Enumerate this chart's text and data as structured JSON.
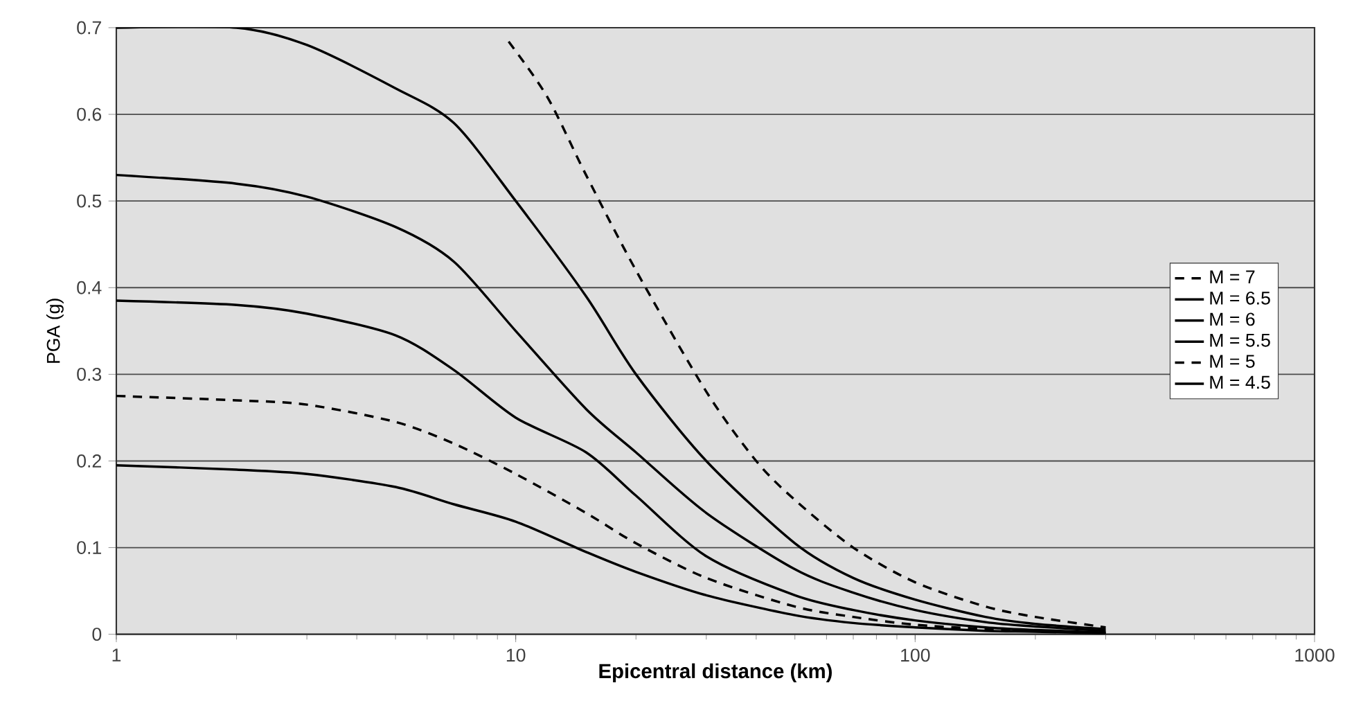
{
  "chart_data": {
    "type": "line",
    "xlabel": "Epicentral distance (km)",
    "ylabel": "PGA (g)",
    "log": "x",
    "xlim": [
      1,
      1000
    ],
    "xticks": [
      1,
      10,
      100,
      1000
    ],
    "ylim": [
      0,
      0.7
    ],
    "yticks": [
      0,
      0.1,
      0.2,
      0.3,
      0.4,
      0.5,
      0.6,
      0.7
    ],
    "grid": "y",
    "legend": "right",
    "marker": "none",
    "series": [
      {
        "name": "M = 7",
        "color": "#000000",
        "line_style": "dashed",
        "x": [
          9.6,
          12,
          15,
          20,
          30,
          40,
          50,
          70,
          100,
          150,
          200,
          300
        ],
        "values": [
          0.684,
          0.62,
          0.53,
          0.42,
          0.28,
          0.2,
          0.155,
          0.1,
          0.06,
          0.032,
          0.02,
          0.008
        ]
      },
      {
        "name": "M = 6.5",
        "color": "#000000",
        "line_style": "solid",
        "x": [
          1,
          2,
          3,
          5,
          7,
          10,
          15,
          20,
          30,
          50,
          70,
          100,
          150,
          200,
          300
        ],
        "values": [
          0.7,
          0.7,
          0.68,
          0.63,
          0.59,
          0.5,
          0.39,
          0.3,
          0.2,
          0.105,
          0.065,
          0.04,
          0.02,
          0.012,
          0.006
        ]
      },
      {
        "name": "M = 6",
        "color": "#000000",
        "line_style": "solid",
        "x": [
          1,
          2,
          3,
          5,
          7,
          10,
          15,
          20,
          30,
          50,
          70,
          100,
          150,
          200,
          300
        ],
        "values": [
          0.53,
          0.52,
          0.505,
          0.47,
          0.43,
          0.35,
          0.26,
          0.21,
          0.14,
          0.075,
          0.048,
          0.028,
          0.014,
          0.009,
          0.004
        ]
      },
      {
        "name": "M = 5.5",
        "color": "#000000",
        "line_style": "solid",
        "x": [
          1,
          2,
          3,
          5,
          7,
          10,
          15,
          20,
          30,
          50,
          70,
          100,
          150,
          200,
          300
        ],
        "values": [
          0.385,
          0.38,
          0.37,
          0.345,
          0.305,
          0.25,
          0.21,
          0.16,
          0.09,
          0.045,
          0.028,
          0.016,
          0.008,
          0.005,
          0.002
        ]
      },
      {
        "name": "M = 5",
        "color": "#000000",
        "line_style": "dashed",
        "x": [
          1,
          2,
          3,
          5,
          7,
          10,
          15,
          20,
          30,
          50,
          70,
          100,
          150,
          200,
          300
        ],
        "values": [
          0.275,
          0.27,
          0.265,
          0.245,
          0.22,
          0.185,
          0.14,
          0.105,
          0.065,
          0.032,
          0.02,
          0.011,
          0.006,
          0.004,
          0.002
        ]
      },
      {
        "name": "M = 4.5",
        "color": "#000000",
        "line_style": "solid",
        "x": [
          1,
          2,
          3,
          5,
          7,
          10,
          15,
          20,
          30,
          50,
          70,
          100,
          150,
          200,
          300
        ],
        "values": [
          0.195,
          0.19,
          0.185,
          0.17,
          0.15,
          0.13,
          0.095,
          0.072,
          0.045,
          0.022,
          0.013,
          0.008,
          0.004,
          0.003,
          0.001
        ]
      }
    ]
  }
}
